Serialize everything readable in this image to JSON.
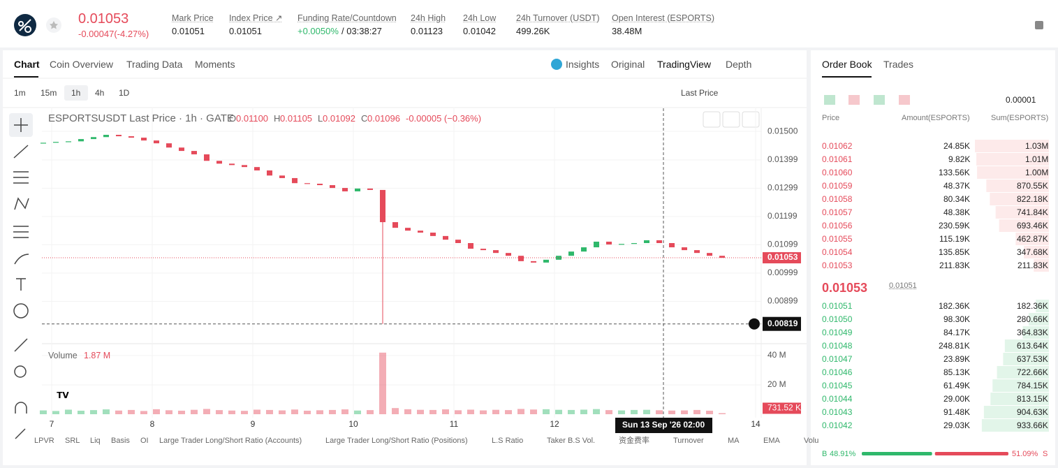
{
  "header": {
    "price": "0.01053",
    "change": "-0.00047(-4.27%)",
    "stats": [
      {
        "label": "Mark Price",
        "value": "0.01051"
      },
      {
        "label": "Index Price ↗",
        "value": "0.01051"
      },
      {
        "label": "Funding Rate/Countdown",
        "value": "+0.0050%",
        "extra": "/ 03:38:27"
      },
      {
        "label": "24h High",
        "value": "0.01123"
      },
      {
        "label": "24h Low",
        "value": "0.01042"
      },
      {
        "label": "24h Turnover (USDT)",
        "value": "499.26K"
      },
      {
        "label": "Open Interest (ESPORTS)",
        "value": "38.48M"
      }
    ]
  },
  "tabs": [
    "Chart",
    "Coin Overview",
    "Trading Data",
    "Moments"
  ],
  "views": [
    "Insights",
    "Original",
    "TradingView",
    "Depth"
  ],
  "intervals": [
    "1m",
    "15m",
    "1h",
    "4h",
    "1D"
  ],
  "price_type": "Last Price",
  "chart": {
    "type": "candlestick",
    "legend": "ESPORTSUSDT Last Price · 1h · GATE",
    "ohlc": [
      {
        "key": "O",
        "value": "0.01100"
      },
      {
        "key": "H",
        "value": "0.01105"
      },
      {
        "key": "L",
        "value": "0.01092"
      },
      {
        "key": "C",
        "value": "0.01096"
      }
    ],
    "change": "-0.00005 (−0.36%)",
    "up_color": "#2fb86b",
    "down_color": "#e54a5a",
    "ylim": [
      0.00754,
      0.01582
    ],
    "yticks": [
      {
        "value": 0.015,
        "label": "0.01500"
      },
      {
        "value": 0.01399,
        "label": "0.01399"
      },
      {
        "value": 0.01299,
        "label": "0.01299"
      },
      {
        "value": 0.01199,
        "label": "0.01199"
      },
      {
        "value": 0.01099,
        "label": "0.01099"
      },
      {
        "value": 0.00999,
        "label": "0.00999"
      },
      {
        "value": 0.00899,
        "label": "0.00899"
      }
    ],
    "xlim": [
      -2.33,
      169.33
    ],
    "xticks": [
      {
        "value": 0,
        "label": "7"
      },
      {
        "value": 24,
        "label": "8"
      },
      {
        "value": 48,
        "label": "9"
      },
      {
        "value": 72,
        "label": "10"
      },
      {
        "value": 96,
        "label": "11"
      },
      {
        "value": 120,
        "label": "12"
      },
      {
        "value": 168,
        "label": "14"
      }
    ],
    "x": [
      -2,
      1,
      4,
      7,
      10,
      13,
      16,
      19,
      22,
      25,
      28,
      31,
      34,
      37,
      40,
      43,
      46,
      49,
      52,
      55,
      58,
      61,
      64,
      67,
      70,
      73,
      76,
      79,
      82,
      85,
      88,
      91,
      94,
      97,
      100,
      103,
      106,
      109,
      112,
      115,
      118,
      121,
      124,
      127,
      130,
      133,
      136,
      139,
      142,
      145,
      148,
      151,
      154,
      157,
      160
    ],
    "closes": [
      0.0146,
      0.01463,
      0.01465,
      0.01473,
      0.0148,
      0.01488,
      0.01483,
      0.01478,
      0.01468,
      0.01458,
      0.01443,
      0.01431,
      0.01419,
      0.01396,
      0.01386,
      0.01381,
      0.01374,
      0.01362,
      0.01344,
      0.01335,
      0.01317,
      0.01315,
      0.0131,
      0.013,
      0.01288,
      0.01298,
      0.01293,
      0.01179,
      0.01159,
      0.01149,
      0.01142,
      0.0113,
      0.01117,
      0.01105,
      0.01085,
      0.0108,
      0.0107,
      0.0106,
      0.01041,
      0.01036,
      0.01046,
      0.0106,
      0.01075,
      0.0109,
      0.0111,
      0.011,
      0.01102,
      0.01105,
      0.01115,
      0.01105,
      0.0109,
      0.0108,
      0.0107,
      0.0106,
      0.01053
    ],
    "low_line": {
      "value": 0.00819,
      "label": "0.00819"
    },
    "last_price": {
      "value": 0.01053,
      "label": "0.01053"
    },
    "crosshair": {
      "value": 146,
      "label": "Sun 13 Sep '26  02:00"
    },
    "volume": {
      "title": "Volume",
      "current": "1.87 M",
      "ylim": [
        0,
        44.3
      ],
      "yticks": [
        {
          "value": 20,
          "label": "20 M"
        },
        {
          "value": 40,
          "label": "40 M"
        }
      ],
      "values": [
        2.6,
        2.2,
        3.1,
        2.4,
        2.8,
        3.3,
        2.5,
        2.9,
        2.2,
        3.4,
        2.7,
        2.4,
        3.0,
        3.6,
        2.8,
        2.5,
        2.3,
        3.1,
        2.9,
        2.6,
        3.2,
        2.4,
        2.7,
        2.9,
        3.3,
        2.5,
        2.8,
        42,
        4.2,
        3.4,
        3.0,
        2.9,
        3.3,
        2.7,
        3.1,
        2.6,
        3.0,
        2.8,
        3.6,
        3.2,
        3.4,
        3.0,
        2.9,
        3.1,
        3.5,
        2.8,
        2.6,
        2.9,
        3.0,
        2.7,
        2.5,
        2.6,
        2.9,
        2.4,
        0.73152
      ],
      "last": {
        "value": 0.73152,
        "label": "731.52 K"
      }
    }
  },
  "indicators": [
    "LPVR",
    "SRL",
    "Liq",
    "Basis",
    "OI",
    "Large Trader Long/Short Ratio (Accounts)",
    "Large Trader Long/Short Ratio (Positions)",
    "L.S Ratio",
    "Taker B.S Vol.",
    "资金费率",
    "Turnover",
    "MA",
    "EMA",
    "Volu"
  ],
  "orderbook": {
    "tabs": [
      "Order Book",
      "Trades"
    ],
    "tick": "0.00001",
    "headers": [
      "Price",
      "Amount(ESPORTS)",
      "Sum(ESPORTS)"
    ],
    "asks": [
      {
        "price": "0.01062",
        "amount": "24.85K",
        "sum": {
          "value": 1030000,
          "label": "1.03M"
        }
      },
      {
        "price": "0.01061",
        "amount": "9.82K",
        "sum": {
          "value": 1010000,
          "label": "1.01M"
        }
      },
      {
        "price": "0.01060",
        "amount": "133.56K",
        "sum": {
          "value": 1000000,
          "label": "1.00M"
        }
      },
      {
        "price": "0.01059",
        "amount": "48.37K",
        "sum": {
          "value": 870550,
          "label": "870.55K"
        }
      },
      {
        "price": "0.01058",
        "amount": "80.34K",
        "sum": {
          "value": 822180,
          "label": "822.18K"
        }
      },
      {
        "price": "0.01057",
        "amount": "48.38K",
        "sum": {
          "value": 741840,
          "label": "741.84K"
        }
      },
      {
        "price": "0.01056",
        "amount": "230.59K",
        "sum": {
          "value": 693460,
          "label": "693.46K"
        }
      },
      {
        "price": "0.01055",
        "amount": "115.19K",
        "sum": {
          "value": 462870,
          "label": "462.87K"
        }
      },
      {
        "price": "0.01054",
        "amount": "135.85K",
        "sum": {
          "value": 347680,
          "label": "347.68K"
        }
      },
      {
        "price": "0.01053",
        "amount": "211.83K",
        "sum": {
          "value": 211830,
          "label": "211.83K"
        }
      }
    ],
    "mid": "0.01053",
    "mark": "0.01051",
    "bids": [
      {
        "price": "0.01051",
        "amount": "182.36K",
        "sum": {
          "value": 182360,
          "label": "182.36K"
        }
      },
      {
        "price": "0.01050",
        "amount": "98.30K",
        "sum": {
          "value": 280660,
          "label": "280.66K"
        }
      },
      {
        "price": "0.01049",
        "amount": "84.17K",
        "sum": {
          "value": 364830,
          "label": "364.83K"
        }
      },
      {
        "price": "0.01048",
        "amount": "248.81K",
        "sum": {
          "value": 613640,
          "label": "613.64K"
        }
      },
      {
        "price": "0.01047",
        "amount": "23.89K",
        "sum": {
          "value": 637530,
          "label": "637.53K"
        }
      },
      {
        "price": "0.01046",
        "amount": "85.13K",
        "sum": {
          "value": 722660,
          "label": "722.66K"
        }
      },
      {
        "price": "0.01045",
        "amount": "61.49K",
        "sum": {
          "value": 784150,
          "label": "784.15K"
        }
      },
      {
        "price": "0.01044",
        "amount": "29.00K",
        "sum": {
          "value": 813150,
          "label": "813.15K"
        }
      },
      {
        "price": "0.01043",
        "amount": "91.48K",
        "sum": {
          "value": 904630,
          "label": "904.63K"
        }
      },
      {
        "price": "0.01042",
        "amount": "29.03K",
        "sum": {
          "value": 933660,
          "label": "933.66K"
        }
      }
    ],
    "buy_letter": "B",
    "buy": {
      "value": 48.91,
      "label": "48.91%"
    },
    "sell": {
      "value": 51.09,
      "label": "51.09%"
    },
    "sell_letter": "S"
  }
}
